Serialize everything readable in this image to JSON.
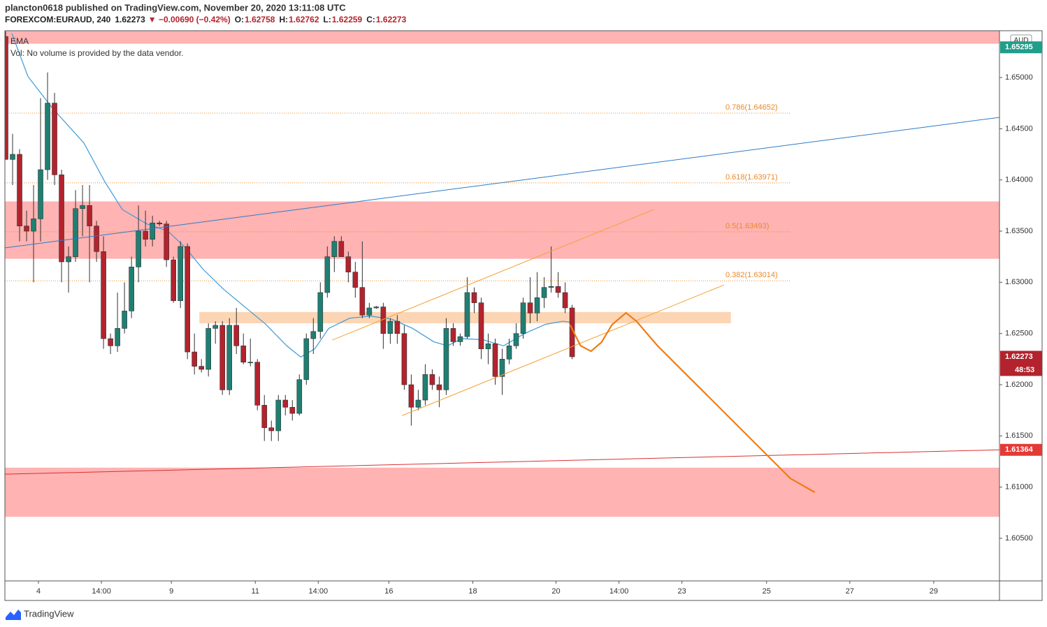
{
  "header": {
    "byline": "plancton0618 published on TradingView.com, November 20, 2020 13:11:08 UTC",
    "symbol": "FOREXCOM:EURAUD, 240",
    "price": 1.62273,
    "change": "▼ −0.00690 (−0.42%)",
    "ohlc": [
      {
        "label": "O:",
        "value": 1.62758
      },
      {
        "label": "H:",
        "value": 1.62762
      },
      {
        "label": "L:",
        "value": 1.62259
      },
      {
        "label": "C:",
        "value": 1.62273
      }
    ]
  },
  "legend": [
    "EMA",
    "Vol: No volume is provided by the data vendor."
  ],
  "footer": "TradingView",
  "chart_data": {
    "type": "candlestick",
    "currency": "AUD",
    "up_color": "#1f7f72",
    "down_color": "#b3232d",
    "xlim": [
      -0.1,
      142.1
    ],
    "ylim": [
      1.60084,
      1.65457
    ],
    "yticks": [
      {
        "value": 1.605,
        "label": "1.60500"
      },
      {
        "value": 1.61,
        "label": "1.61000"
      },
      {
        "value": 1.615,
        "label": "1.61500"
      },
      {
        "value": 1.62,
        "label": "1.62000"
      },
      {
        "value": 1.625,
        "label": "1.62500"
      },
      {
        "value": 1.63,
        "label": "1.63000"
      },
      {
        "value": 1.635,
        "label": "1.63500"
      },
      {
        "value": 1.64,
        "label": "1.64000"
      },
      {
        "value": 1.645,
        "label": "1.64500"
      },
      {
        "value": 1.65,
        "label": "1.65000"
      }
    ],
    "xticks": [
      {
        "value": 4.7,
        "label": "4"
      },
      {
        "value": 13.7,
        "label": "14:00"
      },
      {
        "value": 23.7,
        "label": "9"
      },
      {
        "value": 35.7,
        "label": "11"
      },
      {
        "value": 44.7,
        "label": "14:00"
      },
      {
        "value": 54.8,
        "label": "16"
      },
      {
        "value": 66.8,
        "label": "18"
      },
      {
        "value": 78.7,
        "label": "20"
      },
      {
        "value": 87.7,
        "label": "14:00"
      },
      {
        "value": 96.7,
        "label": "23"
      },
      {
        "value": 108.8,
        "label": "25"
      },
      {
        "value": 120.7,
        "label": "27"
      },
      {
        "value": 132.7,
        "label": "29"
      }
    ],
    "x": [
      0,
      1,
      2,
      3,
      4,
      5,
      6,
      7,
      8,
      9,
      10,
      11,
      12,
      13,
      14,
      15,
      16,
      17,
      18,
      19,
      20,
      21,
      22,
      23,
      24,
      25,
      26,
      27,
      28,
      29,
      30,
      31,
      32,
      33,
      34,
      35,
      36,
      37,
      38,
      39,
      40,
      41,
      42,
      43,
      44,
      45,
      46,
      47,
      48,
      49,
      50,
      51,
      52,
      53,
      54,
      55,
      56,
      57,
      58,
      59,
      60,
      61,
      62,
      63,
      64,
      65,
      66,
      67,
      68,
      69,
      70,
      71,
      72,
      73,
      74,
      75,
      76,
      77,
      78,
      79,
      80,
      81
    ],
    "open": [
      1.654,
      1.642,
      1.6425,
      1.6355,
      1.635,
      1.6362,
      1.641,
      1.6475,
      1.6405,
      1.632,
      1.6325,
      1.6372,
      1.6375,
      1.6355,
      1.633,
      1.6245,
      1.6238,
      1.6255,
      1.6272,
      1.6315,
      1.635,
      1.6342,
      1.6358,
      1.6357,
      1.6322,
      1.6282,
      1.6335,
      1.6232,
      1.6218,
      1.6215,
      1.6255,
      1.6258,
      1.6195,
      1.6258,
      1.6238,
      1.6222,
      1.6222,
      1.618,
      1.6158,
      1.6155,
      1.6185,
      1.6178,
      1.6172,
      1.6205,
      1.6245,
      1.6252,
      1.629,
      1.6325,
      1.634,
      1.6325,
      1.631,
      1.6295,
      1.6268,
      1.6275,
      1.6276,
      1.625,
      1.6262,
      1.625,
      1.62,
      1.6178,
      1.6185,
      1.621,
      1.62,
      1.6195,
      1.6255,
      1.6242,
      1.6247,
      1.629,
      1.628,
      1.6235,
      1.624,
      1.6208,
      1.6225,
      1.6238,
      1.625,
      1.628,
      1.627,
      1.6285,
      1.6295,
      1.6296,
      1.629,
      1.6275
    ],
    "high": [
      1.6545,
      1.6445,
      1.643,
      1.637,
      1.6395,
      1.648,
      1.6505,
      1.6485,
      1.641,
      1.6335,
      1.639,
      1.6395,
      1.6395,
      1.636,
      1.6345,
      1.625,
      1.629,
      1.63,
      1.6325,
      1.6375,
      1.637,
      1.6365,
      1.636,
      1.636,
      1.6325,
      1.634,
      1.6338,
      1.625,
      1.6225,
      1.626,
      1.6262,
      1.6262,
      1.6265,
      1.6275,
      1.625,
      1.6245,
      1.6225,
      1.619,
      1.6165,
      1.619,
      1.619,
      1.6185,
      1.621,
      1.625,
      1.6265,
      1.63,
      1.6335,
      1.6345,
      1.6345,
      1.633,
      1.632,
      1.634,
      1.628,
      1.6277,
      1.628,
      1.6265,
      1.6268,
      1.6258,
      1.621,
      1.6195,
      1.622,
      1.6215,
      1.6208,
      1.6265,
      1.626,
      1.625,
      1.6305,
      1.6295,
      1.6285,
      1.625,
      1.6245,
      1.6235,
      1.6245,
      1.626,
      1.6285,
      1.6305,
      1.631,
      1.6305,
      1.6335,
      1.631,
      1.63,
      1.6278
    ],
    "low": [
      1.642,
      1.6395,
      1.634,
      1.634,
      1.63,
      1.634,
      1.64,
      1.6395,
      1.63,
      1.629,
      1.632,
      1.6345,
      1.63,
      1.632,
      1.6235,
      1.623,
      1.6232,
      1.625,
      1.6265,
      1.63,
      1.6335,
      1.6335,
      1.6355,
      1.6315,
      1.628,
      1.6275,
      1.6225,
      1.621,
      1.6212,
      1.6208,
      1.624,
      1.619,
      1.619,
      1.623,
      1.622,
      1.6218,
      1.6175,
      1.6145,
      1.6145,
      1.6145,
      1.617,
      1.6165,
      1.617,
      1.62,
      1.623,
      1.6245,
      1.6285,
      1.631,
      1.6325,
      1.63,
      1.6285,
      1.6265,
      1.6265,
      1.6274,
      1.6235,
      1.624,
      1.624,
      1.6195,
      1.616,
      1.6175,
      1.618,
      1.6195,
      1.6178,
      1.619,
      1.6238,
      1.6238,
      1.6245,
      1.627,
      1.6225,
      1.622,
      1.62,
      1.619,
      1.622,
      1.6235,
      1.6245,
      1.626,
      1.6262,
      1.6275,
      1.629,
      1.6285,
      1.627,
      1.6225
    ],
    "close": [
      1.642,
      1.6425,
      1.6355,
      1.635,
      1.6362,
      1.641,
      1.6475,
      1.6405,
      1.632,
      1.6325,
      1.6372,
      1.6375,
      1.6355,
      1.633,
      1.6245,
      1.6238,
      1.6255,
      1.6272,
      1.6315,
      1.635,
      1.6342,
      1.6358,
      1.6357,
      1.6322,
      1.6282,
      1.6335,
      1.6232,
      1.6218,
      1.6215,
      1.6255,
      1.6258,
      1.6195,
      1.6258,
      1.6238,
      1.6222,
      1.6222,
      1.618,
      1.6158,
      1.6155,
      1.6185,
      1.6178,
      1.6172,
      1.6205,
      1.6245,
      1.6252,
      1.629,
      1.6325,
      1.634,
      1.6325,
      1.631,
      1.6295,
      1.6268,
      1.6275,
      1.6276,
      1.625,
      1.6262,
      1.625,
      1.62,
      1.6178,
      1.6185,
      1.621,
      1.62,
      1.6195,
      1.6255,
      1.6242,
      1.6247,
      1.629,
      1.628,
      1.6235,
      1.624,
      1.6208,
      1.6225,
      1.6238,
      1.625,
      1.628,
      1.627,
      1.6285,
      1.6295,
      1.6296,
      1.629,
      1.6275,
      1.62273
    ],
    "ema": {
      "name": "EMA",
      "color": "#3a9ad9",
      "x": [
        0.9,
        3.2,
        6.7,
        11.2,
        14.2,
        16.7,
        20.2,
        23.2,
        25.7,
        28.2,
        31.2,
        34.2,
        37.2,
        40.2,
        42.2,
        44.2,
        46.2,
        49.2,
        52.2,
        55.2,
        58.2,
        61.2,
        63.2,
        65.2,
        68.2,
        71.2,
        74.2,
        77.2,
        79.7,
        80.7
      ],
      "values": [
        1.6543,
        1.6501,
        1.647,
        1.6436,
        1.6398,
        1.6371,
        1.6357,
        1.635,
        1.6334,
        1.6313,
        1.6293,
        1.6276,
        1.6259,
        1.6238,
        1.6227,
        1.6235,
        1.6255,
        1.6265,
        1.6267,
        1.6264,
        1.6255,
        1.6242,
        1.6238,
        1.6245,
        1.6244,
        1.6238,
        1.625,
        1.6259,
        1.6262,
        1.6261
      ]
    },
    "zones": [
      {
        "from": 1.6533,
        "to": 1.6546,
        "color": "#ffb3b3"
      },
      {
        "from": 1.6323,
        "to": 1.6379,
        "color": "#ffb3b3"
      },
      {
        "from": 1.6071,
        "to": 1.6119,
        "color": "#ffb3b3"
      },
      {
        "from": 1.626,
        "to": 1.6271,
        "x": [
          27.7,
          103.7
        ],
        "color": "#fcd5b4"
      }
    ],
    "fib_levels": [
      {
        "value": 1.64652,
        "label": "0.786(1.64652)"
      },
      {
        "value": 1.63971,
        "label": "0.618(1.63971)"
      },
      {
        "value": 1.63493,
        "label": "0.5(1.63493)"
      },
      {
        "value": 1.63014,
        "label": "0.382(1.63014)"
      }
    ],
    "fib_color": "#e8892b",
    "trendlines": [
      {
        "x": [
          -0.1,
          142.1
        ],
        "y": [
          1.63336,
          1.64611
        ],
        "color": "#2e7bc4"
      },
      {
        "x": [
          -0.1,
          142.1
        ],
        "y": [
          1.61126,
          1.61364
        ],
        "color": "#d93030"
      },
      {
        "x": [
          46.7,
          92.7
        ],
        "y": [
          1.62436,
          1.63711
        ],
        "color": "#f5a033"
      },
      {
        "x": [
          56.7,
          102.7
        ],
        "y": [
          1.61699,
          1.62974
        ],
        "color": "#f5a033"
      }
    ],
    "projection": {
      "color": "#ee7d12",
      "x": [
        80.7,
        82.2,
        83.7,
        85.2,
        86.7,
        88.7,
        90.2,
        93.2,
        97.2,
        100.2,
        104.2,
        108.2,
        112.2,
        115.7
      ],
      "y": [
        1.62586,
        1.62381,
        1.62327,
        1.62415,
        1.62586,
        1.62702,
        1.6262,
        1.62381,
        1.62108,
        1.61904,
        1.61631,
        1.61358,
        1.61085,
        1.60949
      ]
    },
    "price_labels": [
      {
        "value": 1.65295,
        "color": "#1f9e8a"
      },
      {
        "value": 1.62273,
        "color": "#b3232d",
        "countdown": "48:53"
      },
      {
        "value": 1.61364,
        "color": "#e53935"
      }
    ]
  }
}
